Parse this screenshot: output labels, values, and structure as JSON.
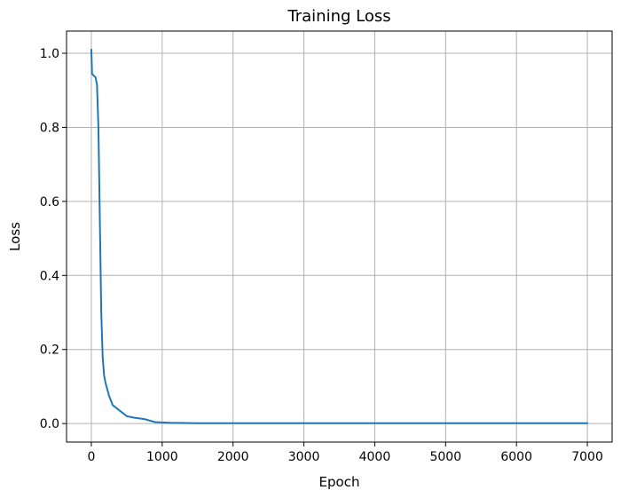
{
  "chart_data": {
    "type": "line",
    "title": "Training Loss",
    "xlabel": "Epoch",
    "ylabel": "Loss",
    "xlim": [
      -350,
      7350
    ],
    "ylim": [
      -0.05,
      1.06
    ],
    "xticks": [
      0,
      1000,
      2000,
      3000,
      4000,
      5000,
      6000,
      7000
    ],
    "yticks": [
      0.0,
      0.2,
      0.4,
      0.6,
      0.8,
      1.0
    ],
    "xtick_labels": [
      "0",
      "1000",
      "2000",
      "3000",
      "4000",
      "5000",
      "6000",
      "7000"
    ],
    "ytick_labels": [
      "0.0",
      "0.2",
      "0.4",
      "0.6",
      "0.8",
      "1.0"
    ],
    "grid": true,
    "legend": null,
    "series": [
      {
        "color": "#1f77b4",
        "x": [
          0,
          10,
          30,
          60,
          80,
          100,
          120,
          140,
          160,
          180,
          200,
          250,
          300,
          400,
          500,
          600,
          750,
          900,
          1100,
          1500,
          2000,
          3000,
          4000,
          5000,
          6000,
          7000
        ],
        "y": [
          1.01,
          0.945,
          0.94,
          0.935,
          0.915,
          0.8,
          0.55,
          0.3,
          0.18,
          0.13,
          0.11,
          0.075,
          0.05,
          0.035,
          0.02,
          0.016,
          0.012,
          0.004,
          0.002,
          0.001,
          0.001,
          0.001,
          0.001,
          0.001,
          0.001,
          0.001
        ]
      }
    ]
  }
}
